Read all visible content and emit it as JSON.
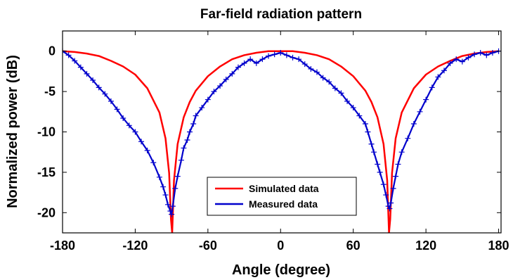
{
  "chart_data": {
    "type": "line",
    "title": "Far-field radiation pattern",
    "xlabel": "Angle (degree)",
    "ylabel": "Normalized power (dB)",
    "xlim": [
      -180,
      182
    ],
    "ylim": [
      -22.5,
      2.5
    ],
    "xticks": [
      -180,
      -120,
      -60,
      0,
      60,
      120,
      180
    ],
    "yticks": [
      0,
      -5,
      -10,
      -15,
      -20
    ],
    "grid": false,
    "legend_position": "bottom-center",
    "series": [
      {
        "name": "Simulated data",
        "color": "#ff0000",
        "x": [
          -180,
          -170,
          -160,
          -150,
          -140,
          -130,
          -120,
          -110,
          -100,
          -95,
          -92,
          -90.5,
          -89.5,
          -88,
          -85,
          -80,
          -75,
          -70,
          -60,
          -50,
          -40,
          -30,
          -20,
          -10,
          0,
          10,
          20,
          30,
          40,
          50,
          60,
          70,
          75,
          80,
          85,
          88,
          89.5,
          90.5,
          92,
          95,
          100,
          110,
          120,
          130,
          140,
          150,
          160,
          170,
          180
        ],
        "y": [
          0,
          -0.1,
          -0.3,
          -0.6,
          -1.2,
          -1.9,
          -2.9,
          -4.6,
          -7.6,
          -10.8,
          -15.1,
          -20.8,
          -22.5,
          -16,
          -11.5,
          -8.2,
          -6.3,
          -4.9,
          -3.1,
          -1.9,
          -1.0,
          -0.5,
          -0.2,
          0,
          0,
          0,
          -0.2,
          -0.5,
          -1.0,
          -1.9,
          -3.1,
          -4.9,
          -6.3,
          -8.2,
          -11.5,
          -16,
          -22.5,
          -20.8,
          -15.1,
          -10.8,
          -7.6,
          -4.6,
          -2.9,
          -1.9,
          -1.2,
          -0.6,
          -0.3,
          -0.1,
          0
        ]
      },
      {
        "name": "Measured data",
        "color": "#0000cc",
        "x": [
          -180,
          -175,
          -170,
          -165,
          -160,
          -155,
          -150,
          -145,
          -140,
          -135,
          -130,
          -125,
          -120,
          -115,
          -110,
          -105,
          -100,
          -97,
          -95,
          -93,
          -91,
          -90,
          -89,
          -87,
          -85,
          -82,
          -80,
          -77,
          -75,
          -72,
          -70,
          -65,
          -60,
          -55,
          -50,
          -45,
          -40,
          -35,
          -30,
          -25,
          -20,
          -15,
          -10,
          -5,
          0,
          5,
          10,
          15,
          20,
          25,
          30,
          35,
          40,
          45,
          50,
          55,
          60,
          65,
          70,
          72,
          75,
          77,
          80,
          82,
          85,
          87,
          89,
          90,
          91,
          93,
          95,
          97,
          100,
          105,
          110,
          115,
          120,
          125,
          130,
          135,
          140,
          145,
          150,
          155,
          160,
          165,
          170,
          175,
          180
        ],
        "y": [
          0,
          -0.5,
          -1.2,
          -2.0,
          -2.8,
          -3.6,
          -4.5,
          -5.3,
          -6.2,
          -7.2,
          -8.3,
          -9.2,
          -10.0,
          -11.2,
          -12.3,
          -13.8,
          -15.6,
          -16.8,
          -17.8,
          -19.0,
          -19.8,
          -20.2,
          -19.2,
          -17.0,
          -15.5,
          -13.5,
          -12.0,
          -11.0,
          -10.0,
          -9.0,
          -8.0,
          -7.0,
          -6.0,
          -5.0,
          -4.3,
          -3.5,
          -2.8,
          -2.0,
          -1.5,
          -1.0,
          -1.5,
          -1.0,
          -0.6,
          -0.4,
          -0.2,
          -0.5,
          -0.8,
          -1.0,
          -1.6,
          -2.2,
          -2.6,
          -3.3,
          -3.8,
          -4.6,
          -5.2,
          -6.2,
          -7.0,
          -8.0,
          -9.0,
          -10.0,
          -11.5,
          -12.5,
          -14.0,
          -15.0,
          -16.5,
          -17.8,
          -19.2,
          -19.5,
          -18.8,
          -17.0,
          -15.5,
          -14.0,
          -12.5,
          -10.8,
          -9.0,
          -7.5,
          -6.0,
          -4.5,
          -3.2,
          -2.4,
          -1.5,
          -1.0,
          -1.3,
          -0.8,
          -0.4,
          -0.2,
          -0.5,
          -0.2,
          0
        ]
      }
    ]
  }
}
